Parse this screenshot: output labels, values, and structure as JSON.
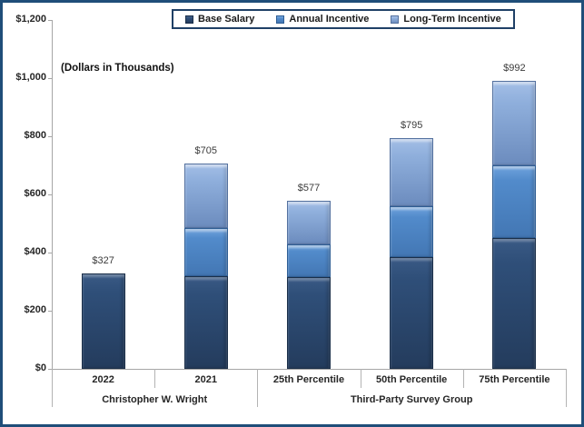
{
  "frame": {
    "border_color": "#1F4E79"
  },
  "annotation": "(Dollars in Thousands)",
  "legend": {
    "items": [
      {
        "label": "Base Salary",
        "color": "#2E4D77"
      },
      {
        "label": "Annual Incentive",
        "color": "#4F86C6"
      },
      {
        "label": "Long-Term Incentive",
        "color": "#8FAFDC"
      }
    ]
  },
  "chart_data": {
    "type": "bar",
    "stacked": true,
    "title": "",
    "ylabel": "(Dollars in Thousands)",
    "xlabel": "",
    "ylim": [
      0,
      1200
    ],
    "ytick_step": 200,
    "ytick_labels": [
      "$0",
      "$200",
      "$400",
      "$600",
      "$800",
      "$1,000",
      "$1,200"
    ],
    "grid": false,
    "legend_position": "top",
    "categories": [
      "2022",
      "2021",
      "25th Percentile",
      "50th Percentile",
      "75th Percentile"
    ],
    "groups": [
      {
        "label": "Christopher W. Wright",
        "span": [
          0,
          1
        ]
      },
      {
        "label": "Third-Party Survey Group",
        "span": [
          2,
          4
        ]
      }
    ],
    "series": [
      {
        "name": "Base Salary",
        "values": [
          327,
          320,
          315,
          385,
          450
        ]
      },
      {
        "name": "Annual Incentive",
        "values": [
          0,
          165,
          113,
          175,
          250
        ]
      },
      {
        "name": "Long-Term Incentive",
        "values": [
          0,
          220,
          149,
          235,
          292
        ]
      }
    ],
    "totals": [
      327,
      705,
      577,
      795,
      992
    ],
    "total_labels": [
      "$327",
      "$705",
      "$577",
      "$795",
      "$992"
    ]
  }
}
